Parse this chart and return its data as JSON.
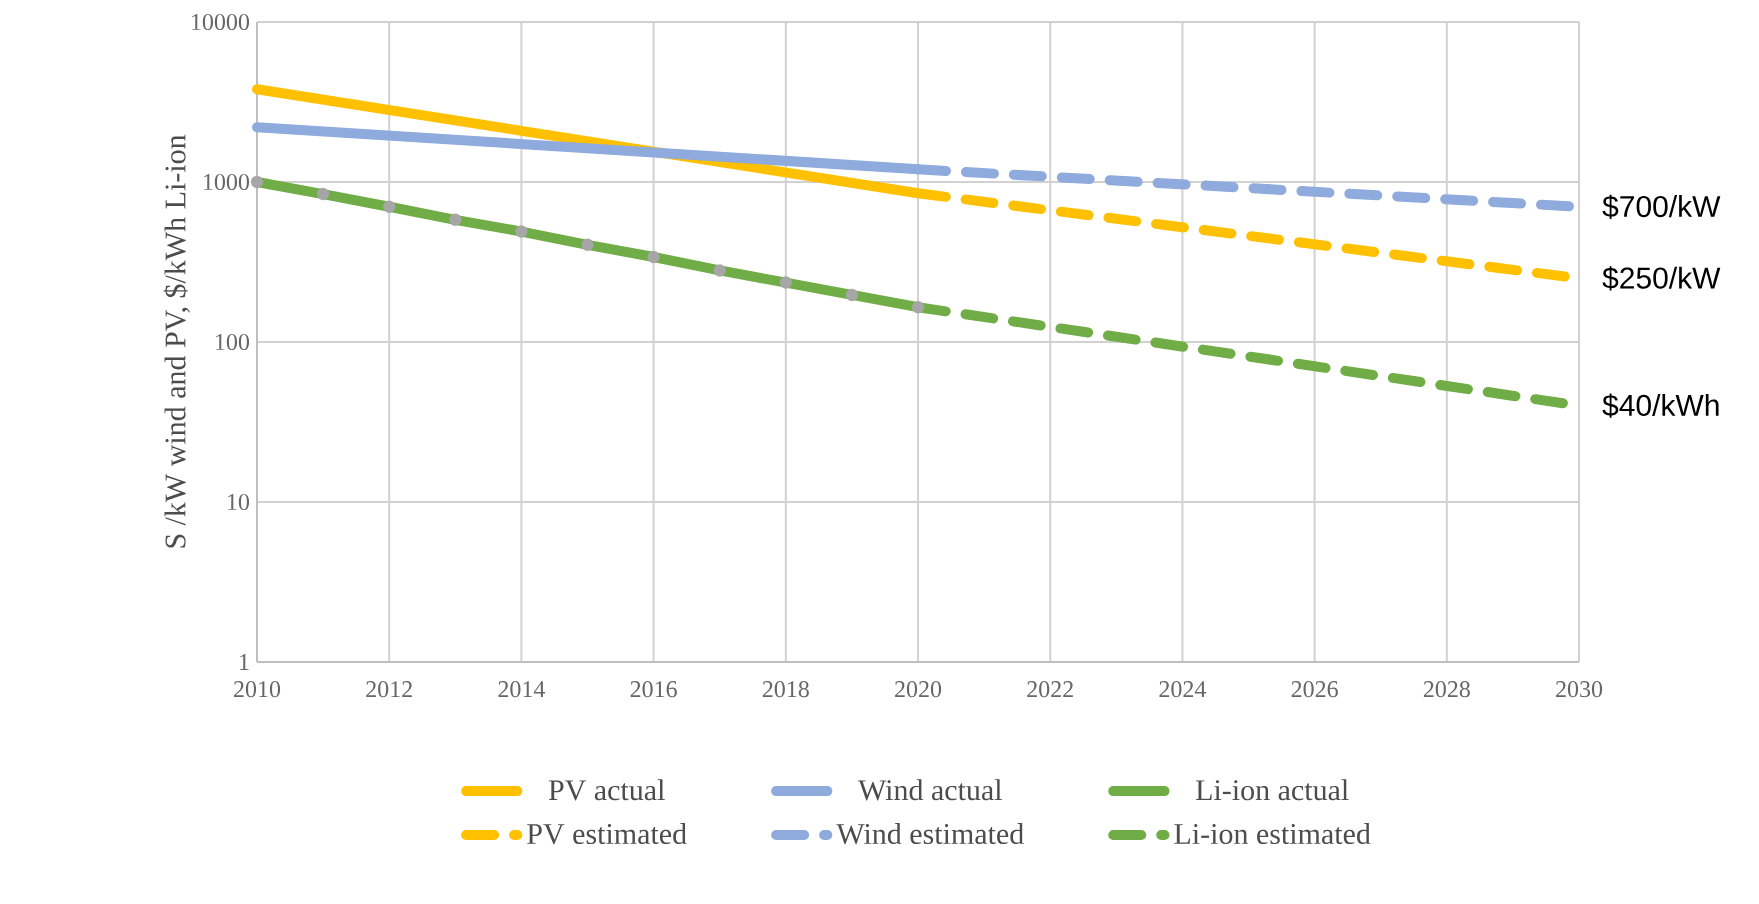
{
  "chart_data": {
    "type": "line",
    "ylabel": "S /kW wind and PV, $/kWh Li-ion",
    "log": "y",
    "xlim": [
      2010,
      2030
    ],
    "xticks": [
      2010,
      2012,
      2014,
      2016,
      2018,
      2020,
      2022,
      2024,
      2026,
      2028,
      2030
    ],
    "ylim": [
      1,
      10000
    ],
    "yticks": [
      1,
      10,
      100,
      1000,
      10000
    ],
    "grid": true,
    "legend": "bottom",
    "series": [
      {
        "name": "PV actual",
        "color": "#ffc000",
        "line_style": "solid",
        "x": [
          2010,
          2020
        ],
        "values": [
          3800,
          850
        ]
      },
      {
        "name": "Wind actual",
        "color": "#8faadc",
        "line_style": "solid",
        "x": [
          2010,
          2020
        ],
        "values": [
          2200,
          1200
        ]
      },
      {
        "name": "Li-ion actual",
        "color": "#70ad47",
        "line_style": "solid",
        "marker": "circle",
        "x": [
          2010,
          2011,
          2012,
          2013,
          2014,
          2015,
          2016,
          2017,
          2018,
          2019,
          2020
        ],
        "values": [
          1000,
          840,
          700,
          580,
          490,
          405,
          340,
          280,
          235,
          197,
          165
        ]
      },
      {
        "name": "PV estimated",
        "color": "#ffc000",
        "line_style": "dashed",
        "x": [
          2020,
          2030
        ],
        "values": [
          850,
          250
        ]
      },
      {
        "name": "Wind estimated",
        "color": "#8faadc",
        "line_style": "dashed",
        "x": [
          2020,
          2030
        ],
        "values": [
          1200,
          700
        ]
      },
      {
        "name": "Li-ion estimated",
        "color": "#70ad47",
        "line_style": "dashed",
        "x": [
          2020,
          2030
        ],
        "values": [
          165,
          40
        ]
      }
    ],
    "annotations": [
      "$700/kW",
      "$250/kW",
      "$40/kWh"
    ]
  }
}
